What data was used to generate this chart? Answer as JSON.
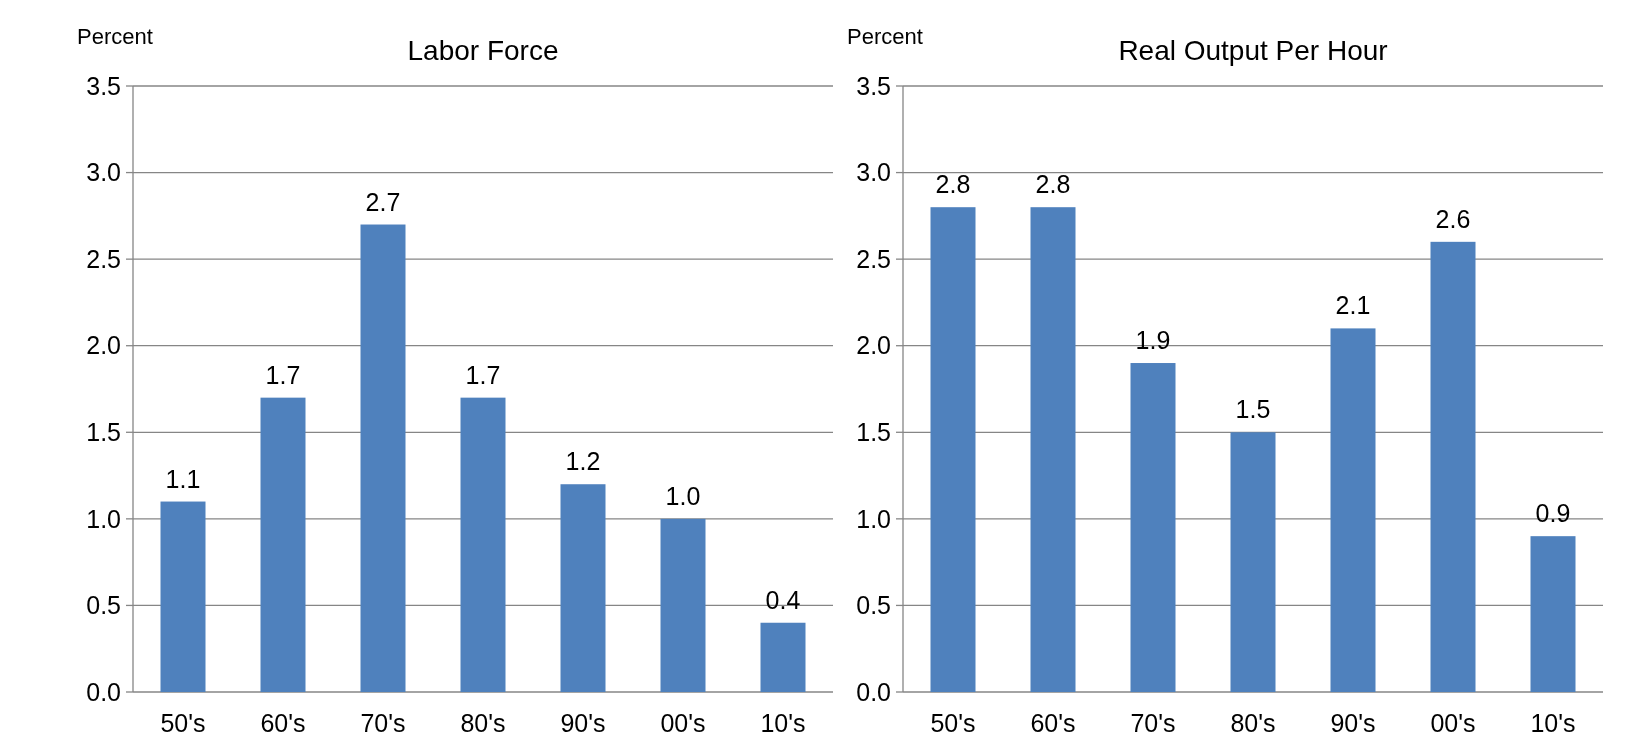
{
  "chart_data": [
    {
      "type": "bar",
      "title": "Labor Force",
      "ylabel": "Percent",
      "categories": [
        "50's",
        "60's",
        "70's",
        "80's",
        "90's",
        "00's",
        "10's"
      ],
      "values": [
        1.1,
        1.7,
        2.7,
        1.7,
        1.2,
        1.0,
        0.4
      ],
      "value_labels": [
        "1.1",
        "1.7",
        "2.7",
        "1.7",
        "1.2",
        "1.0",
        "0.4"
      ],
      "color": "#4f81bd",
      "ylim": [
        0,
        3.5
      ],
      "yticks": [
        {
          "value": 0,
          "label": "0.0"
        },
        {
          "value": 0.5,
          "label": "0.5"
        },
        {
          "value": 1,
          "label": "1.0"
        },
        {
          "value": 1.5,
          "label": "1.5"
        },
        {
          "value": 2,
          "label": "2.0"
        },
        {
          "value": 2.5,
          "label": "2.5"
        },
        {
          "value": 3,
          "label": "3.0"
        },
        {
          "value": 3.5,
          "label": "3.5"
        }
      ],
      "grid": "y"
    },
    {
      "type": "bar",
      "title": "Real Output Per Hour",
      "ylabel": "Percent",
      "categories": [
        "50's",
        "60's",
        "70's",
        "80's",
        "90's",
        "00's",
        "10's"
      ],
      "values": [
        2.8,
        2.8,
        1.9,
        1.5,
        2.1,
        2.6,
        0.9
      ],
      "value_labels": [
        "2.8",
        "2.8",
        "1.9",
        "1.5",
        "2.1",
        "2.6",
        "0.9"
      ],
      "color": "#4f81bd",
      "ylim": [
        0,
        3.5
      ],
      "yticks": [
        {
          "value": 0,
          "label": "0.0"
        },
        {
          "value": 0.5,
          "label": "0.5"
        },
        {
          "value": 1,
          "label": "1.0"
        },
        {
          "value": 1.5,
          "label": "1.5"
        },
        {
          "value": 2,
          "label": "2.0"
        },
        {
          "value": 2.5,
          "label": "2.5"
        },
        {
          "value": 3,
          "label": "3.0"
        },
        {
          "value": 3.5,
          "label": "3.5"
        }
      ],
      "grid": "y"
    }
  ]
}
